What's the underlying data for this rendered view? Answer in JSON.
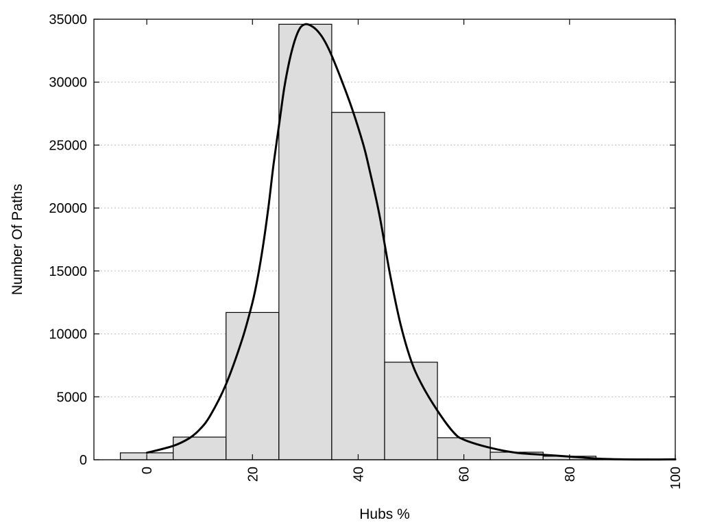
{
  "chart_data": {
    "type": "bar",
    "xlabel": "Hubs %",
    "ylabel": "Number Of Paths",
    "xlim": [
      -10,
      100
    ],
    "ylim": [
      0,
      35000
    ],
    "x_ticks": [
      0,
      20,
      40,
      60,
      80,
      100
    ],
    "y_ticks": [
      0,
      5000,
      10000,
      15000,
      20000,
      25000,
      30000,
      35000
    ],
    "grid": "horizontal dotted",
    "bar_color": "#dddddd",
    "bins": [
      {
        "start": -5,
        "end": 5,
        "value": 550
      },
      {
        "start": 5,
        "end": 15,
        "value": 1800
      },
      {
        "start": 15,
        "end": 25,
        "value": 11700
      },
      {
        "start": 25,
        "end": 35,
        "value": 34600
      },
      {
        "start": 35,
        "end": 45,
        "value": 27600
      },
      {
        "start": 45,
        "end": 55,
        "value": 7750
      },
      {
        "start": 55,
        "end": 65,
        "value": 1750
      },
      {
        "start": 65,
        "end": 75,
        "value": 600
      },
      {
        "start": 75,
        "end": 85,
        "value": 280
      },
      {
        "start": 85,
        "end": 95,
        "value": 60
      },
      {
        "start": 95,
        "end": 105,
        "value": 30
      }
    ],
    "density_curve": {
      "x": [
        0,
        5,
        8,
        10,
        12,
        15,
        18,
        20,
        21,
        22,
        23,
        24,
        25,
        26,
        27,
        28,
        29,
        30,
        31,
        32,
        33,
        34,
        35,
        37,
        39,
        41,
        42,
        44,
        46,
        48,
        50,
        52,
        55,
        58,
        60,
        65,
        70,
        75,
        80,
        85,
        90,
        95,
        100
      ],
      "y": [
        550,
        1100,
        1700,
        2400,
        3500,
        6000,
        9500,
        12500,
        14500,
        17000,
        20000,
        23500,
        26500,
        29500,
        31700,
        33300,
        34300,
        34600,
        34500,
        34200,
        33700,
        33000,
        32100,
        30000,
        27700,
        25000,
        23300,
        19500,
        14800,
        10800,
        7900,
        6000,
        3900,
        2200,
        1600,
        950,
        550,
        400,
        250,
        100,
        30,
        20,
        30
      ]
    }
  }
}
